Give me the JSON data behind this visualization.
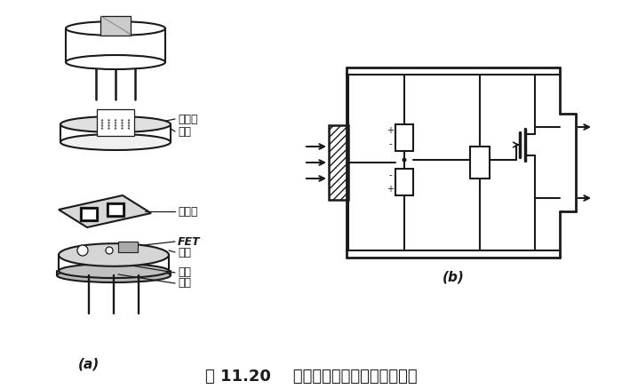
{
  "title": "图 11.20    热释电人体红外传感器的结构",
  "label_a": "(a)",
  "label_b": "(b)",
  "bg_color": "#ffffff",
  "line_color": "#1a1a1a",
  "labels": {
    "filter": "滤光片",
    "cap": "管帽",
    "element": "敏感元",
    "fet": "FET",
    "socket": "管座",
    "resistor": "高阻",
    "lead": "引线"
  },
  "font_size_title": 13,
  "font_size_label": 9,
  "font_size_sublabel": 10
}
